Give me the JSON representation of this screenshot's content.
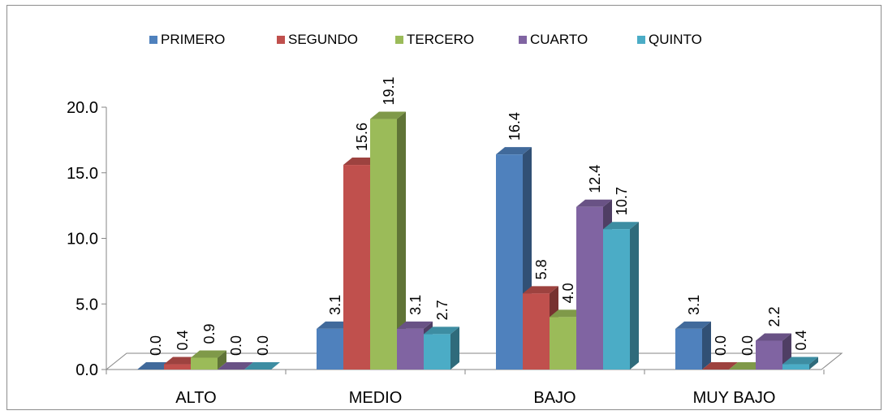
{
  "chart_data": {
    "type": "bar",
    "three_d": true,
    "title": "",
    "xlabel": "",
    "ylabel": "",
    "categories": [
      "ALTO",
      "MEDIO",
      "BAJO",
      "MUY BAJO"
    ],
    "series": [
      {
        "name": "PRIMERO",
        "values": [
          0.0,
          3.1,
          16.4,
          3.1
        ],
        "labels": [
          "0.0",
          "3.1",
          "16.4",
          "3.1"
        ]
      },
      {
        "name": "SEGUNDO",
        "values": [
          0.4,
          15.6,
          5.8,
          0.0
        ],
        "labels": [
          "0.4",
          "15.6",
          "5.8",
          "0.0"
        ]
      },
      {
        "name": "TERCERO",
        "values": [
          0.9,
          19.1,
          4.0,
          0.0
        ],
        "labels": [
          "0.9",
          "19.1",
          "4.0",
          "0.0"
        ]
      },
      {
        "name": "CUARTO",
        "values": [
          0.0,
          3.1,
          12.4,
          2.2
        ],
        "labels": [
          "0.0",
          "3.1",
          "12.4",
          "2.2"
        ]
      },
      {
        "name": "QUINTO",
        "values": [
          0.0,
          2.7,
          10.7,
          0.4
        ],
        "labels": [
          "0.0",
          "2.7",
          "10.7",
          "0.4"
        ]
      }
    ],
    "colors": [
      "#4f81bd",
      "#c0504d",
      "#9bbb59",
      "#8064a2",
      "#4bacc6"
    ],
    "ylim": [
      0,
      20
    ],
    "yticks": [
      0,
      5,
      10,
      15,
      20
    ],
    "ytick_labels": [
      "0.0",
      "5.0",
      "10.0",
      "15.0",
      "20.0"
    ],
    "grid": false,
    "legend_position": "top"
  }
}
